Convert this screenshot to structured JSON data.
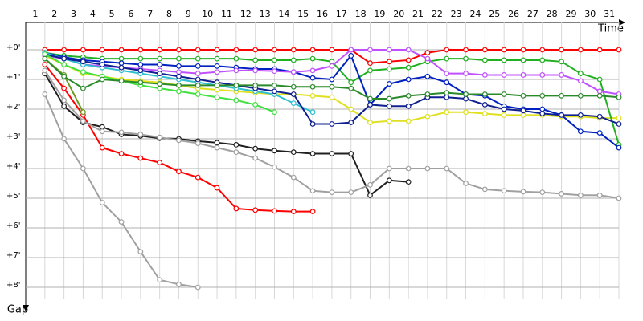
{
  "chart_data": {
    "type": "line",
    "x_label": "Time",
    "y_label": "Gap",
    "categories": [
      "1",
      "2",
      "3",
      "4",
      "5",
      "6",
      "7",
      "8",
      "9",
      "10",
      "11",
      "12",
      "13",
      "14",
      "15",
      "16",
      "17",
      "18",
      "19",
      "20",
      "21",
      "22",
      "23",
      "24",
      "25",
      "26",
      "27",
      "28",
      "29",
      "30",
      "31"
    ],
    "ylim": [
      0,
      8.4
    ],
    "yticks": [
      {
        "value": 0,
        "label": "+0'"
      },
      {
        "value": 1,
        "label": "+1'"
      },
      {
        "value": 2,
        "label": "+2'"
      },
      {
        "value": 3,
        "label": "+3'"
      },
      {
        "value": 4,
        "label": "+4'"
      },
      {
        "value": 5,
        "label": "+5'"
      },
      {
        "value": 6,
        "label": "+6'"
      },
      {
        "value": 7,
        "label": "+7'"
      },
      {
        "value": 8,
        "label": "+8'"
      }
    ],
    "grid": true,
    "series": [
      {
        "color": "#ff0000",
        "values": [
          0,
          0,
          0,
          0,
          0,
          0,
          0,
          0,
          0,
          0,
          0,
          0,
          0,
          0,
          0,
          0,
          0,
          0.45,
          0.4,
          0.35,
          0.1,
          0,
          0,
          0,
          0,
          0,
          0,
          0,
          0,
          0,
          0
        ]
      },
      {
        "color": "#ff0000",
        "values": [
          0.5,
          1.3,
          2.2,
          3.3,
          3.5,
          3.65,
          3.8,
          4.1,
          4.3,
          4.65,
          5.35,
          5.4,
          5.43,
          5.45,
          5.45,
          null,
          null,
          null,
          null,
          null,
          null,
          null,
          null,
          null,
          null,
          null,
          null,
          null,
          null,
          null,
          null
        ]
      },
      {
        "color": "#a0a0a0",
        "values": [
          1.5,
          3.0,
          4.0,
          5.15,
          5.8,
          6.8,
          7.75,
          7.9,
          8.0,
          null,
          null,
          null,
          null,
          null,
          null,
          null,
          null,
          null,
          null,
          null,
          null,
          null,
          null,
          null,
          null,
          null,
          null,
          null,
          null,
          null,
          null
        ]
      },
      {
        "color": "#202020",
        "values": [
          0.8,
          1.9,
          2.45,
          2.6,
          2.85,
          2.9,
          2.98,
          3.0,
          3.08,
          3.13,
          3.2,
          3.33,
          3.4,
          3.45,
          3.5,
          3.5,
          3.5,
          4.9,
          4.4,
          4.45,
          null,
          null,
          null,
          null,
          null,
          null,
          null,
          null,
          null,
          null,
          null
        ]
      },
      {
        "color": "#a0a0a0",
        "values": [
          0.7,
          1.7,
          2.4,
          2.75,
          2.78,
          2.85,
          2.95,
          3.05,
          3.15,
          3.3,
          3.45,
          3.65,
          3.95,
          4.3,
          4.75,
          4.8,
          4.8,
          4.55,
          4.0,
          4.0,
          4.0,
          4.0,
          4.5,
          4.7,
          4.75,
          4.78,
          4.8,
          4.85,
          4.9,
          4.9,
          5.0
        ]
      },
      {
        "color": "#6a9a20",
        "values": [
          0.3,
          0.85,
          2.1,
          null,
          null,
          null,
          null,
          null,
          null,
          null,
          null,
          null,
          null,
          null,
          null,
          null,
          null,
          null,
          null,
          null,
          null,
          null,
          null,
          null,
          null,
          null,
          null,
          null,
          null,
          null,
          null
        ]
      },
      {
        "color": "#e0e020",
        "values": [
          0.2,
          0.5,
          0.8,
          0.9,
          1.0,
          1.05,
          1.1,
          1.2,
          1.3,
          1.35,
          1.4,
          1.45,
          1.5,
          1.5,
          1.55,
          1.6,
          2.0,
          2.45,
          2.4,
          2.4,
          2.25,
          2.1,
          2.1,
          2.15,
          2.2,
          2.2,
          2.2,
          2.25,
          2.25,
          2.3,
          2.3
        ]
      },
      {
        "color": "#20b020",
        "values": [
          0.1,
          0.2,
          0.25,
          0.3,
          0.3,
          0.3,
          0.3,
          0.3,
          0.3,
          0.3,
          0.3,
          0.35,
          0.35,
          0.35,
          0.3,
          0.4,
          1.1,
          0.7,
          0.65,
          0.6,
          0.4,
          0.3,
          0.3,
          0.35,
          0.35,
          0.35,
          0.35,
          0.4,
          0.8,
          1.0,
          3.2
        ]
      },
      {
        "color": "#0020c0",
        "values": [
          0.1,
          0.25,
          0.35,
          0.4,
          0.45,
          0.5,
          0.5,
          0.55,
          0.55,
          0.55,
          0.6,
          0.65,
          0.65,
          0.75,
          0.95,
          1.0,
          0.2,
          1.85,
          1.15,
          1.0,
          0.9,
          1.1,
          1.5,
          1.55,
          1.9,
          2.0,
          2.0,
          2.2,
          2.75,
          2.8,
          3.3
        ]
      },
      {
        "color": "#c050ff",
        "values": [
          0.2,
          0.3,
          0.5,
          0.55,
          0.6,
          0.65,
          0.7,
          0.75,
          0.8,
          0.75,
          0.7,
          0.7,
          0.72,
          0.75,
          0.7,
          0.55,
          0,
          0,
          0,
          0,
          0.3,
          0.8,
          0.8,
          0.85,
          0.85,
          0.85,
          0.85,
          0.85,
          1.05,
          1.4,
          1.5
        ]
      },
      {
        "color": "#30c0d0",
        "values": [
          0.1,
          0.3,
          0.5,
          0.6,
          0.7,
          0.8,
          0.9,
          1.0,
          1.1,
          1.2,
          1.3,
          1.4,
          1.5,
          1.8,
          2.1,
          null,
          null,
          null,
          null,
          null,
          null,
          null,
          null,
          null,
          null,
          null,
          null,
          null,
          null,
          null,
          null
        ]
      },
      {
        "color": "#102090",
        "values": [
          0.15,
          0.3,
          0.4,
          0.5,
          0.6,
          0.7,
          0.8,
          0.9,
          1.0,
          1.1,
          1.2,
          1.3,
          1.4,
          1.5,
          2.5,
          2.5,
          2.45,
          1.85,
          1.9,
          1.9,
          1.6,
          1.6,
          1.65,
          1.85,
          2.0,
          2.05,
          2.15,
          2.2,
          2.2,
          2.25,
          2.5
        ]
      },
      {
        "color": "#40e040",
        "values": [
          0.15,
          0.5,
          0.75,
          0.9,
          1.05,
          1.2,
          1.3,
          1.4,
          1.5,
          1.6,
          1.7,
          1.85,
          2.1,
          null,
          null,
          null,
          null,
          null,
          null,
          null,
          null,
          null,
          null,
          null,
          null,
          null,
          null,
          null,
          null,
          null,
          null
        ]
      },
      {
        "color": "#2a8a2a",
        "values": [
          0.3,
          0.9,
          1.3,
          1.0,
          1.05,
          1.1,
          1.15,
          1.2,
          1.2,
          1.2,
          1.2,
          1.2,
          1.2,
          1.25,
          1.25,
          1.25,
          1.3,
          1.65,
          1.65,
          1.55,
          1.5,
          1.45,
          1.5,
          1.5,
          1.5,
          1.55,
          1.55,
          1.55,
          1.55,
          1.55,
          1.6
        ]
      }
    ]
  }
}
